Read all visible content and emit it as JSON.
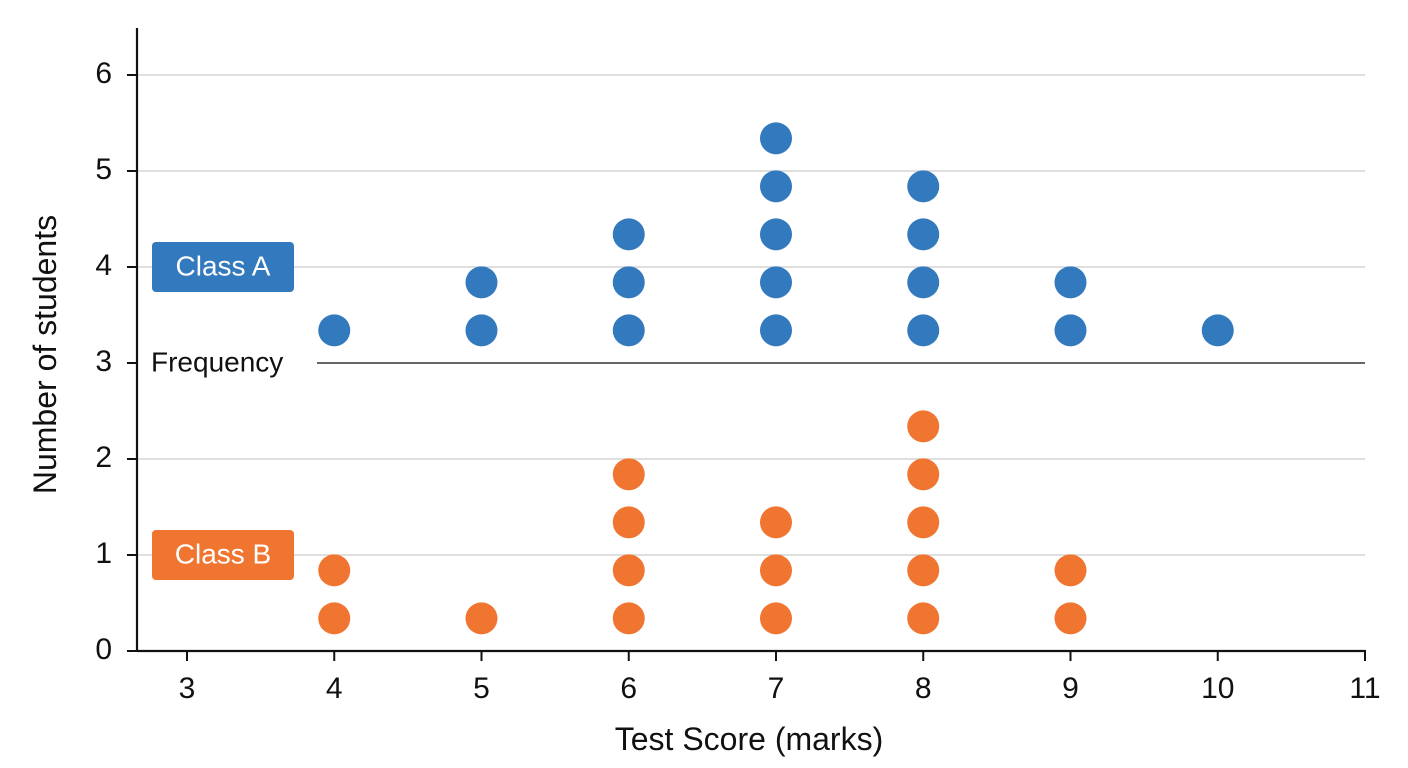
{
  "chart_data": {
    "type": "scatter",
    "subtype": "dot-plot",
    "title": "",
    "xlabel": "Test Score (marks)",
    "ylabel": "Number of students",
    "xlim": [
      3,
      11
    ],
    "ylim": [
      0,
      6
    ],
    "x_ticks": [
      "3",
      "4",
      "5",
      "6",
      "7",
      "8",
      "9",
      "10",
      "11"
    ],
    "y_ticks": [
      "0",
      "1",
      "2",
      "3",
      "4",
      "5",
      "6"
    ],
    "grid": "horizontal",
    "divider": {
      "label": "Frequency",
      "y": 3
    },
    "series": [
      {
        "name": "Class A",
        "color": "#3379bd",
        "baseline": 3,
        "x": [
          4,
          5,
          6,
          7,
          8,
          9,
          10
        ],
        "counts": [
          1,
          2,
          3,
          5,
          4,
          2,
          1
        ]
      },
      {
        "name": "Class B",
        "color": "#f07530",
        "baseline": 0,
        "x": [
          4,
          5,
          6,
          7,
          8,
          9
        ],
        "counts": [
          2,
          1,
          4,
          3,
          5,
          2
        ]
      }
    ]
  }
}
